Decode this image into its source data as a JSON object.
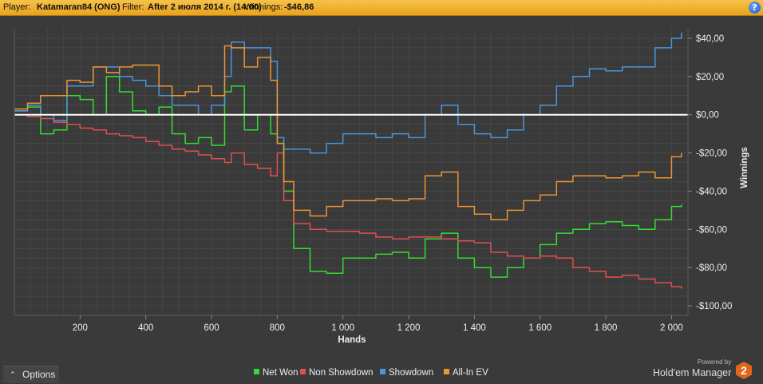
{
  "header": {
    "player_label": "Player:",
    "player_value": "Katamaran84 (ONG)",
    "filter_label": "Filter:",
    "filter_value": "After 2 июля 2014 г. (14:00)",
    "winnings_label": "Winnings:",
    "winnings_value": "-$46,86",
    "help_glyph": "?"
  },
  "options": {
    "label": "Options",
    "chevron": "⌃"
  },
  "brand": {
    "powered_by": "Powered by",
    "name": "Hold'em Manager",
    "logo_digit": "2"
  },
  "colors": {
    "background": "#3a3a3a",
    "grid": "#4d4d4d",
    "zero_line": "#ffffff",
    "net_won": "#33dd33",
    "non_showdown": "#e05050",
    "showdown": "#4a96dc",
    "all_in_ev": "#ec9535"
  },
  "chart_data": {
    "type": "line",
    "title": "",
    "xlabel": "Hands",
    "ylabel": "Winnings",
    "xlim": [
      0,
      2050
    ],
    "ylim": [
      -105,
      45
    ],
    "x_ticks": [
      200,
      400,
      600,
      800,
      1000,
      1200,
      1400,
      1600,
      1800,
      2000
    ],
    "x_tick_labels": [
      "200",
      "400",
      "600",
      "800",
      "1 000",
      "1 200",
      "1 400",
      "1 600",
      "1 800",
      "2 000"
    ],
    "y_ticks": [
      40,
      20,
      0,
      -20,
      -40,
      -60,
      -80,
      -100
    ],
    "y_tick_labels": [
      "$40,00",
      "$20,00",
      "$0,00",
      "-$20,00",
      "-$40,00",
      "-$60,00",
      "-$80,00",
      "-$100,00"
    ],
    "grid": true,
    "legend_position": "bottom",
    "x": [
      0,
      40,
      80,
      120,
      160,
      200,
      240,
      280,
      320,
      360,
      400,
      440,
      480,
      520,
      560,
      600,
      640,
      660,
      700,
      740,
      780,
      800,
      820,
      850,
      900,
      950,
      1000,
      1050,
      1100,
      1150,
      1200,
      1250,
      1300,
      1350,
      1400,
      1450,
      1500,
      1550,
      1600,
      1650,
      1700,
      1750,
      1800,
      1850,
      1900,
      1950,
      2000,
      2030
    ],
    "series": [
      {
        "name": "Net Won",
        "color_key": "net_won",
        "values": [
          2,
          4,
          -10,
          -8,
          10,
          8,
          0,
          20,
          12,
          2,
          0,
          4,
          -10,
          -15,
          -12,
          -16,
          12,
          15,
          -8,
          0,
          -10,
          -15,
          -40,
          -70,
          -82,
          -83,
          -75,
          -75,
          -73,
          -72,
          -75,
          -65,
          -62,
          -75,
          -80,
          -85,
          -80,
          -75,
          -68,
          -62,
          -60,
          -57,
          -56,
          -58,
          -60,
          -55,
          -48,
          -47
        ]
      },
      {
        "name": "Non Showdown",
        "color_key": "non_showdown",
        "values": [
          0,
          -1,
          -2,
          -4,
          -5,
          -7,
          -8,
          -10,
          -11,
          -12,
          -14,
          -16,
          -18,
          -19,
          -21,
          -23,
          -25,
          -20,
          -26,
          -28,
          -32,
          -20,
          -45,
          -57,
          -60,
          -61,
          -61,
          -62,
          -64,
          -65,
          -64,
          -64,
          -65,
          -66,
          -67,
          -72,
          -74,
          -75,
          -74,
          -75,
          -80,
          -82,
          -85,
          -84,
          -86,
          -88,
          -90,
          -91
        ]
      },
      {
        "name": "Showdown",
        "color_key": "showdown",
        "values": [
          2,
          5,
          0,
          -3,
          15,
          15,
          25,
          25,
          20,
          18,
          15,
          10,
          5,
          5,
          0,
          5,
          20,
          38,
          35,
          35,
          28,
          -12,
          -18,
          -18,
          -20,
          -15,
          -10,
          -10,
          -12,
          -10,
          -12,
          0,
          5,
          -5,
          -10,
          -12,
          -8,
          0,
          5,
          15,
          20,
          24,
          23,
          25,
          25,
          35,
          40,
          43
        ]
      },
      {
        "name": "All-In EV",
        "color_key": "all_in_ev",
        "values": [
          3,
          6,
          10,
          10,
          18,
          17,
          25,
          22,
          25,
          26,
          26,
          15,
          10,
          12,
          15,
          10,
          36,
          35,
          25,
          30,
          18,
          -15,
          -35,
          -50,
          -53,
          -48,
          -45,
          -45,
          -44,
          -45,
          -44,
          -32,
          -30,
          -48,
          -52,
          -55,
          -50,
          -45,
          -42,
          -35,
          -32,
          -32,
          -33,
          -32,
          -30,
          -33,
          -22,
          -20
        ]
      }
    ]
  }
}
